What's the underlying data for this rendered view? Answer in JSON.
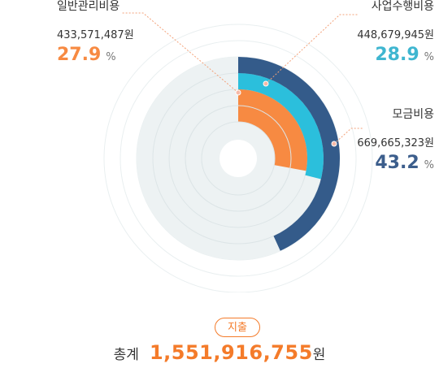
{
  "chart_data": {
    "type": "radial-bar",
    "categories": [
      "일반관리비용",
      "사업수행비용",
      "모금비용"
    ],
    "amounts": [
      "433,571,487원",
      "448,679,945원",
      "669,665,323원"
    ],
    "values": [
      27.9,
      28.9,
      43.2
    ],
    "percent_unit": "%",
    "max_value": 100,
    "colors": [
      "#f78a42",
      "#2bbfdc",
      "#345b8a"
    ],
    "track_color": "#edf2f3"
  },
  "footer": {
    "badge": "지출",
    "total_label": "총계",
    "total_value": "1,551,916,755",
    "total_unit": "원"
  }
}
